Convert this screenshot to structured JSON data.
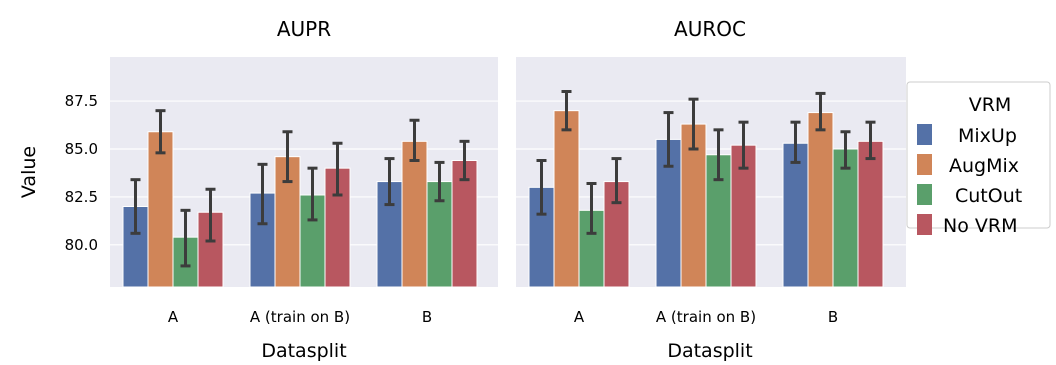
{
  "chart_data": {
    "type": "bar",
    "ylabel": "Value",
    "ylim": [
      77.8,
      89.8
    ],
    "yticks": [
      80.0,
      82.5,
      85.0,
      87.5
    ],
    "ytick_labels": [
      "80.0",
      "82.5",
      "85.0",
      "87.5"
    ],
    "grid": true,
    "legend": {
      "title": "VRM",
      "placement": "right, outside",
      "entries": [
        "MixUp",
        "AugMix",
        "CutOut",
        "No VRM"
      ]
    },
    "colors": [
      "#5471a7",
      "#d08558",
      "#5a9f6b",
      "#b85760"
    ],
    "error_bar_color": "#3c3c3c",
    "panels": [
      {
        "title": "AUPR",
        "xlabel": "Datasplit",
        "categories": [
          "A",
          "A (train on B)",
          "B"
        ],
        "series": [
          {
            "name": "MixUp",
            "values": [
              82.0,
              82.7,
              83.3
            ],
            "err_low": [
              80.6,
              81.1,
              82.1
            ],
            "err_high": [
              83.4,
              84.2,
              84.5
            ]
          },
          {
            "name": "AugMix",
            "values": [
              85.9,
              84.6,
              85.4
            ],
            "err_low": [
              84.8,
              83.3,
              84.4
            ],
            "err_high": [
              87.0,
              85.9,
              86.5
            ]
          },
          {
            "name": "CutOut",
            "values": [
              80.4,
              82.6,
              83.3
            ],
            "err_low": [
              78.9,
              81.3,
              82.3
            ],
            "err_high": [
              81.8,
              84.0,
              84.3
            ]
          },
          {
            "name": "No VRM",
            "values": [
              81.7,
              84.0,
              84.4
            ],
            "err_low": [
              80.2,
              82.6,
              83.4
            ],
            "err_high": [
              82.9,
              85.3,
              85.4
            ]
          }
        ]
      },
      {
        "title": "AUROC",
        "xlabel": "Datasplit",
        "categories": [
          "A",
          "A (train on B)",
          "B"
        ],
        "series": [
          {
            "name": "MixUp",
            "values": [
              83.0,
              85.5,
              85.3
            ],
            "err_low": [
              81.6,
              84.1,
              84.3
            ],
            "err_high": [
              84.4,
              86.9,
              86.4
            ]
          },
          {
            "name": "AugMix",
            "values": [
              87.0,
              86.3,
              86.9
            ],
            "err_low": [
              86.0,
              85.0,
              86.0
            ],
            "err_high": [
              88.0,
              87.6,
              87.9
            ]
          },
          {
            "name": "CutOut",
            "values": [
              81.8,
              84.7,
              85.0
            ],
            "err_low": [
              80.6,
              83.4,
              84.0
            ],
            "err_high": [
              83.2,
              86.0,
              85.9
            ]
          },
          {
            "name": "No VRM",
            "values": [
              83.3,
              85.2,
              85.4
            ],
            "err_low": [
              82.2,
              84.0,
              84.5
            ],
            "err_high": [
              84.5,
              86.4,
              86.4
            ]
          }
        ]
      }
    ]
  }
}
